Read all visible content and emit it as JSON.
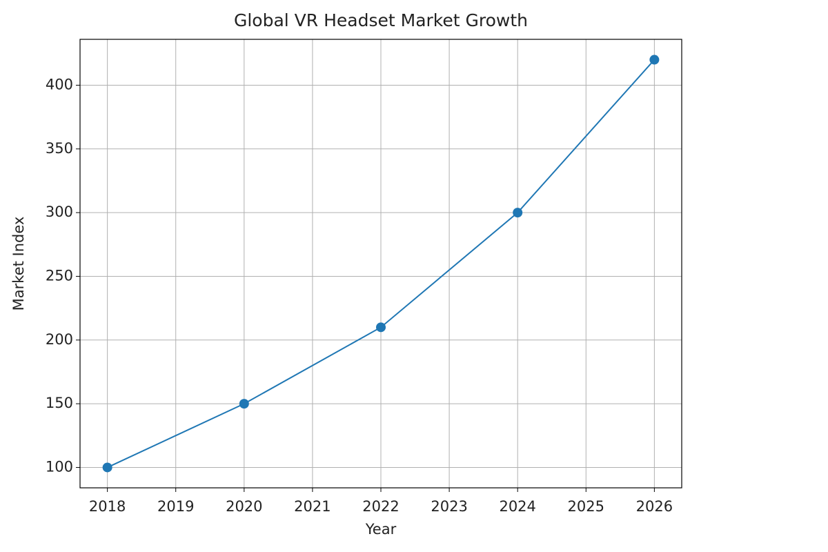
{
  "chart_data": {
    "type": "line",
    "title": "Global VR Headset Market Growth",
    "x_label": "Year",
    "y_label": "Market Index",
    "x": [
      2018,
      2020,
      2022,
      2024,
      2026
    ],
    "series": [
      {
        "name": "Market Index",
        "color": "#1f77b4",
        "values": [
          100,
          150,
          210,
          300,
          420
        ]
      }
    ],
    "xlim": [
      2017.6,
      2026.4
    ],
    "xticks": [
      2018,
      2019,
      2020,
      2021,
      2022,
      2023,
      2024,
      2025,
      2026
    ],
    "ylim": [
      84,
      436
    ],
    "yticks": [
      100,
      150,
      200,
      250,
      300,
      350,
      400
    ],
    "grid": true,
    "markers": true
  }
}
